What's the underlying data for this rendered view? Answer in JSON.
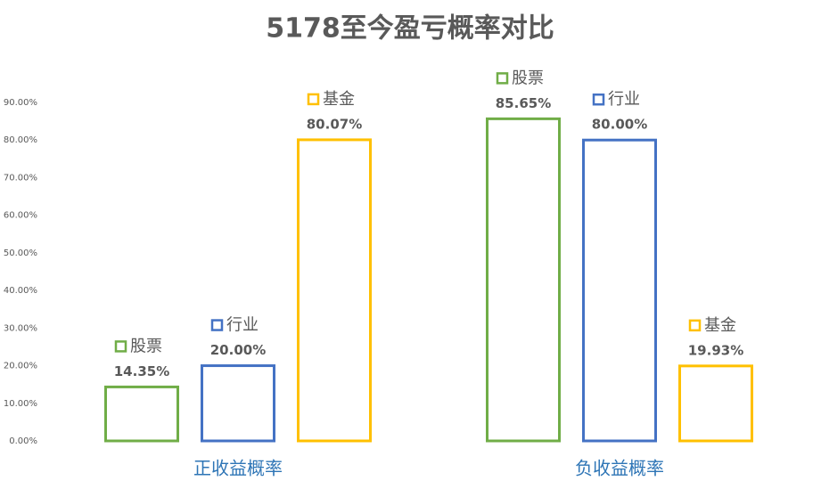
{
  "chart_data": {
    "type": "bar",
    "title": "5178至今盈亏概率对比",
    "categories": [
      "正收益概率",
      "负收益概率"
    ],
    "series": [
      {
        "name": "股票",
        "color": "#70ad47",
        "values": [
          14.35,
          85.65
        ],
        "value_labels": [
          "14.35%",
          "85.65%"
        ]
      },
      {
        "name": "行业",
        "color": "#4472c4",
        "values": [
          20.0,
          80.0
        ],
        "value_labels": [
          "20.00%",
          "80.00%"
        ]
      },
      {
        "name": "基金",
        "color": "#ffc000",
        "values": [
          80.07,
          19.93
        ],
        "value_labels": [
          "80.07%",
          "19.93%"
        ]
      }
    ],
    "ylim": [
      0,
      90
    ],
    "yticks": [
      {
        "value": 0,
        "label": "0.00%"
      },
      {
        "value": 10,
        "label": "10.00%"
      },
      {
        "value": 20,
        "label": "20.00%"
      },
      {
        "value": 30,
        "label": "30.00%"
      },
      {
        "value": 40,
        "label": "40.00%"
      },
      {
        "value": 50,
        "label": "50.00%"
      },
      {
        "value": 60,
        "label": "60.00%"
      },
      {
        "value": 70,
        "label": "70.00%"
      },
      {
        "value": 80,
        "label": "80.00%"
      },
      {
        "value": 90,
        "label": "90.00%"
      }
    ],
    "grid": false,
    "category_label_color": "#2e75b6"
  }
}
